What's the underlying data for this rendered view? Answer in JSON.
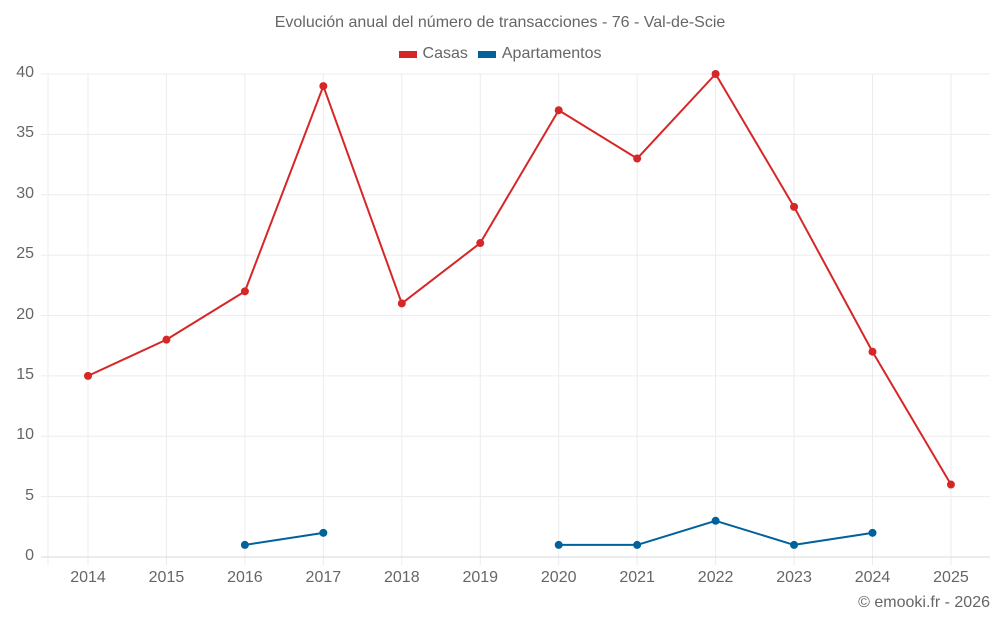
{
  "title": "Evolución anual del número de transacciones - 76 - Val-de-Scie",
  "legend": [
    {
      "label": "Casas",
      "color": "#d62728"
    },
    {
      "label": "Apartamentos",
      "color": "#00629b"
    }
  ],
  "credit": "© emooki.fr - 2026",
  "y_ticks": [
    "0",
    "5",
    "10",
    "15",
    "20",
    "25",
    "30",
    "35",
    "40"
  ],
  "x_ticks": [
    "2014",
    "2015",
    "2016",
    "2017",
    "2018",
    "2019",
    "2020",
    "2021",
    "2022",
    "2023",
    "2024",
    "2025"
  ],
  "chart_data": {
    "type": "line",
    "title": "Evolución anual del número de transacciones - 76 - Val-de-Scie",
    "xlabel": "",
    "ylabel": "",
    "categories": [
      "2014",
      "2015",
      "2016",
      "2017",
      "2018",
      "2019",
      "2020",
      "2021",
      "2022",
      "2023",
      "2024",
      "2025"
    ],
    "series": [
      {
        "name": "Casas",
        "color": "#d62728",
        "values": [
          15,
          18,
          22,
          39,
          21,
          26,
          37,
          33,
          40,
          29,
          17,
          6
        ]
      },
      {
        "name": "Apartamentos",
        "color": "#00629b",
        "values": [
          null,
          null,
          1,
          2,
          null,
          null,
          1,
          1,
          3,
          1,
          2,
          null
        ]
      }
    ],
    "ylim": [
      0,
      40
    ],
    "y_tick_step": 5,
    "grid": true,
    "legend_position": "top"
  }
}
